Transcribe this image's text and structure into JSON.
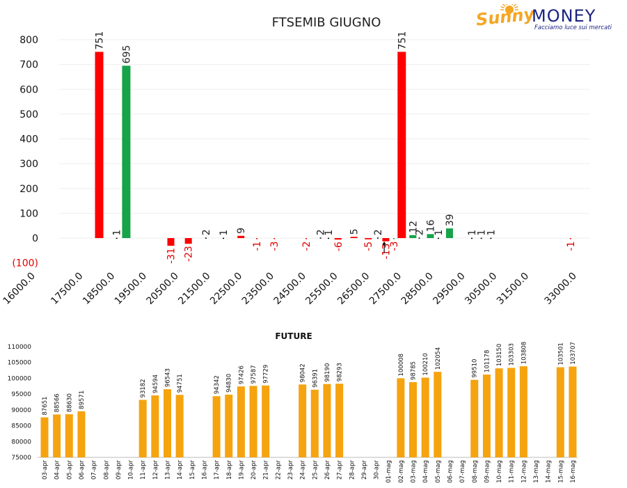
{
  "brand": {
    "name_left": "Sunny",
    "name_right": "MONEY",
    "tagline": "Facciamo luce sui mercati",
    "sun_color": "#f5a623",
    "text_color": "#1a237e"
  },
  "chart_data": [
    {
      "type": "bar",
      "title": "FTSEMIB GIUGNO",
      "xlabel": "",
      "ylabel": "",
      "ylim": [
        -100,
        800
      ],
      "yticks": [
        -100,
        0,
        100,
        200,
        300,
        400,
        500,
        600,
        700,
        800
      ],
      "ytick_labels": [
        "(100)",
        "0",
        "100",
        "200",
        "300",
        "400",
        "500",
        "600",
        "700",
        "800"
      ],
      "xlim": [
        16000,
        33000
      ],
      "xticks": [
        16000,
        17500,
        18500,
        19500,
        20500,
        21500,
        22500,
        23500,
        24500,
        25500,
        26500,
        27500,
        28500,
        29500,
        30500,
        31500,
        33000
      ],
      "xtick_labels": [
        "16000.0",
        "17500.0",
        "18500.0",
        "19500.0",
        "20500.0",
        "21500.0",
        "22500.0",
        "23500.0",
        "24500.0",
        "25500.0",
        "26500.0",
        "27500.0",
        "28500.0",
        "29500.0",
        "30500.0",
        "31500.0",
        "33000.0"
      ],
      "grid": "horizontal",
      "colors": {
        "negative": "#ff0000",
        "positive": "#16a34a",
        "neutral": "#000000",
        "grid": "#eeeeee"
      },
      "bars": [
        {
          "x": 18000,
          "value": 751,
          "label": "751",
          "color": "red"
        },
        {
          "x": 18550,
          "value": 1,
          "label": "1",
          "color": "black"
        },
        {
          "x": 18850,
          "value": 695,
          "label": "695",
          "color": "green"
        },
        {
          "x": 20250,
          "value": -31,
          "label": "-31",
          "color": "red"
        },
        {
          "x": 20800,
          "value": -23,
          "label": "-23",
          "color": "red"
        },
        {
          "x": 21350,
          "value": 2,
          "label": "2",
          "color": "black"
        },
        {
          "x": 21900,
          "value": 1,
          "label": "1",
          "color": "black"
        },
        {
          "x": 22450,
          "value": 9,
          "label": "9",
          "color": "red"
        },
        {
          "x": 22950,
          "value": -1,
          "label": "-1",
          "color": "red"
        },
        {
          "x": 23500,
          "value": -3,
          "label": "-3",
          "color": "red"
        },
        {
          "x": 24500,
          "value": -2,
          "label": "-2",
          "color": "red"
        },
        {
          "x": 24950,
          "value": 2,
          "label": "2",
          "color": "black"
        },
        {
          "x": 25200,
          "value": 1,
          "label": "1",
          "color": "black"
        },
        {
          "x": 25500,
          "value": -6,
          "label": "-6",
          "color": "red"
        },
        {
          "x": 26000,
          "value": 5,
          "label": "5",
          "color": "red"
        },
        {
          "x": 26450,
          "value": -5,
          "label": "-5",
          "color": "red"
        },
        {
          "x": 26750,
          "value": 2,
          "label": "2",
          "color": "black"
        },
        {
          "x": 27000,
          "value": -13,
          "label": "-13",
          "color": "red"
        },
        {
          "x": 27250,
          "value": -3,
          "label": "-3",
          "color": "green"
        },
        {
          "x": 27500,
          "value": 751,
          "label": "751",
          "color": "red"
        },
        {
          "x": 27850,
          "value": 12,
          "label": "12",
          "color": "green"
        },
        {
          "x": 28050,
          "value": 2,
          "label": "2",
          "color": "black"
        },
        {
          "x": 28400,
          "value": 16,
          "label": "16",
          "color": "green"
        },
        {
          "x": 28650,
          "value": 1,
          "label": "1",
          "color": "black"
        },
        {
          "x": 29000,
          "value": 39,
          "label": "39",
          "color": "green"
        },
        {
          "x": 29700,
          "value": 1,
          "label": "1",
          "color": "black"
        },
        {
          "x": 30000,
          "value": 1,
          "label": "1",
          "color": "black"
        },
        {
          "x": 30300,
          "value": 1,
          "label": "1",
          "color": "black"
        },
        {
          "x": 32800,
          "value": -1,
          "label": "-1",
          "color": "red"
        }
      ],
      "marker": {
        "x": 26950,
        "y_from": -60,
        "y_to": -15
      }
    },
    {
      "type": "bar",
      "title": "FUTURE",
      "xlabel": "",
      "ylabel": "",
      "ylim": [
        75000,
        110000
      ],
      "yticks": [
        75000,
        80000,
        85000,
        90000,
        95000,
        100000,
        105000,
        110000
      ],
      "ytick_labels": [
        "75000",
        "80000",
        "85000",
        "90000",
        "95000",
        "100000",
        "105000",
        "110000"
      ],
      "grid": "none",
      "bar_color": "#f5a30f",
      "categories": [
        "03-apr",
        "04-apr",
        "05-apr",
        "06-apr",
        "07-apr",
        "08-apr",
        "09-apr",
        "10-apr",
        "11-apr",
        "12-apr",
        "13-apr",
        "14-apr",
        "15-apr",
        "16-apr",
        "17-apr",
        "18-apr",
        "19-apr",
        "20-apr",
        "21-apr",
        "22-apr",
        "23-apr",
        "24-apr",
        "25-apr",
        "26-apr",
        "27-apr",
        "28-apr",
        "29-apr",
        "30-apr",
        "01-mag",
        "02-mag",
        "03-mag",
        "04-mag",
        "05-mag",
        "06-mag",
        "07-mag",
        "08-mag",
        "09-mag",
        "10-mag",
        "11-mag",
        "12-mag",
        "13-mag",
        "14-mag",
        "15-mag",
        "16-mag"
      ],
      "values": [
        87651,
        88566,
        88630,
        89571,
        null,
        null,
        null,
        null,
        93182,
        94594,
        96543,
        94751,
        null,
        null,
        94342,
        94830,
        97426,
        97587,
        97729,
        null,
        null,
        98042,
        96391,
        98190,
        98293,
        null,
        null,
        null,
        null,
        100008,
        98785,
        100210,
        102054,
        null,
        null,
        99510,
        101178,
        103150,
        103303,
        103808,
        null,
        null,
        103501,
        103707
      ],
      "labels": [
        "87651",
        "88566",
        "88630",
        "89571",
        "",
        "",
        "",
        "",
        "93182",
        "94594",
        "96543",
        "94751",
        "",
        "",
        "94342",
        "94830",
        "97426",
        "97587",
        "97729",
        "",
        "",
        "98042",
        "96391",
        "98190",
        "98293",
        "",
        "",
        "",
        "",
        "100008",
        "98785",
        "100210",
        "102054",
        "",
        "",
        "99510",
        "101178",
        "103150",
        "103303",
        "103808",
        "",
        "",
        "103501",
        "103707"
      ]
    }
  ]
}
